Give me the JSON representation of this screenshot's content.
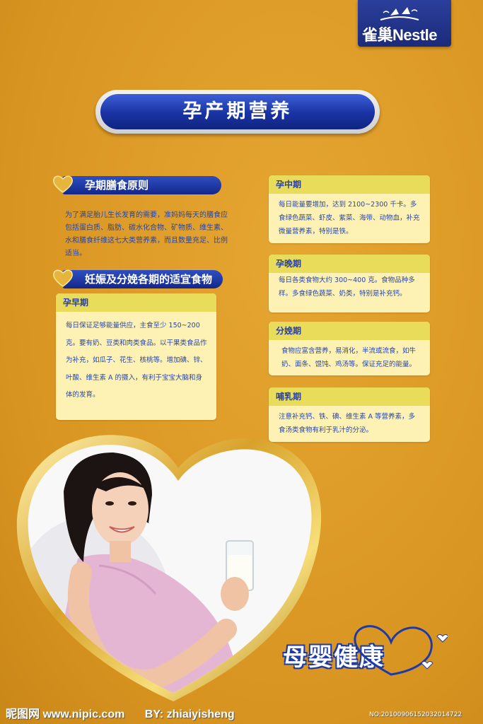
{
  "brand": {
    "logo_text": "雀巢Nestle",
    "slogan": "母婴健康"
  },
  "title": "孕产期营养",
  "principles": {
    "heading": "孕期膳食原则",
    "text": "为了满足胎儿生长发育的需要，准妈妈每天的膳食应包括蛋白质、脂肪、碳水化合物、矿物质、维生素、水和膳食纤维这七大类营养素，而且数量充足、比例适当。"
  },
  "stages_heading": "妊娠及分娩各期的适宜食物",
  "cards": {
    "early": {
      "title": "孕早期",
      "text": "每日保证足够能量供应，主食至少 150~200克。要有奶、豆类和肉类食品。以干果类食品作为补充，如瓜子、花生、核桃等。增加碘、锌、叶酸、维生素 A 的摄入，有利于宝宝大脑和身体的发育。"
    },
    "middle": {
      "title": "孕中期",
      "text": "每日能量要增加，达到 2100~2300 千卡。多食绿色蔬菜、虾皮、紫菜、海带、动物血，补充微量营养素，特别是铁。"
    },
    "late": {
      "title": "孕晚期",
      "text": "每日各类食物大约 300~400 克。食物品种多样。多食绿色蔬菜、奶类，特别是补充钙。"
    },
    "delivery": {
      "title": "分娩期",
      "text": "食物应富含营养，易消化，半流或流食，如牛奶、面条、馄饨、鸡汤等。保证充足的能量。"
    },
    "lactation": {
      "title": "哺乳期",
      "text": "注意补充钙、铁、碘、维生素 A 等营养素，多食汤类食物有利于乳汁的分泌。"
    }
  },
  "footer": {
    "site": "昵图网 www.nipic.com",
    "author": "BY: zhiaiyisheng",
    "image_no": "NO:20100906152032014722"
  },
  "colors": {
    "background": "#dc9a22",
    "accent_blue": "#1a33a3",
    "card_bg": "#fdf2b3",
    "card_head": "#e9dc5a"
  }
}
